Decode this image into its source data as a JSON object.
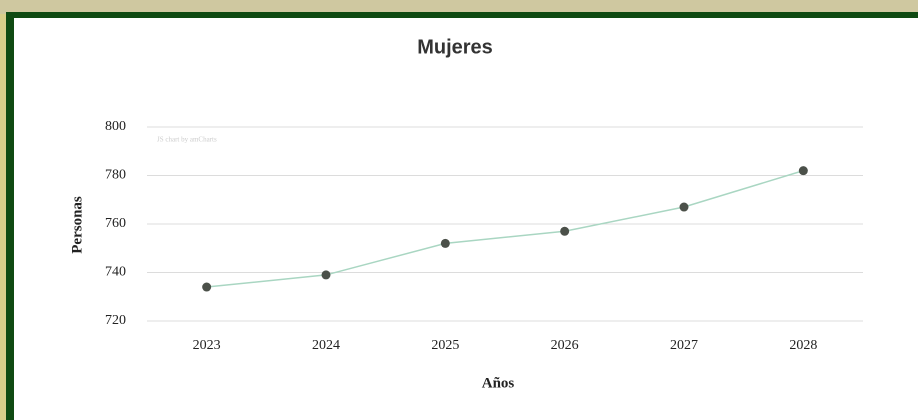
{
  "chart_data": {
    "type": "line",
    "title": "Mujeres",
    "watermark": "JS chart by amCharts",
    "x_label": "Años",
    "y_label": "Personas",
    "categories": [
      "2023",
      "2024",
      "2025",
      "2026",
      "2027",
      "2028"
    ],
    "values": [
      734,
      739,
      752,
      757,
      767,
      782
    ],
    "color": "#a9d6c2",
    "marker_color": "#4b5049",
    "ylim": [
      720,
      800
    ],
    "yticks": [
      720,
      740,
      760,
      780,
      800
    ],
    "grid": true
  }
}
